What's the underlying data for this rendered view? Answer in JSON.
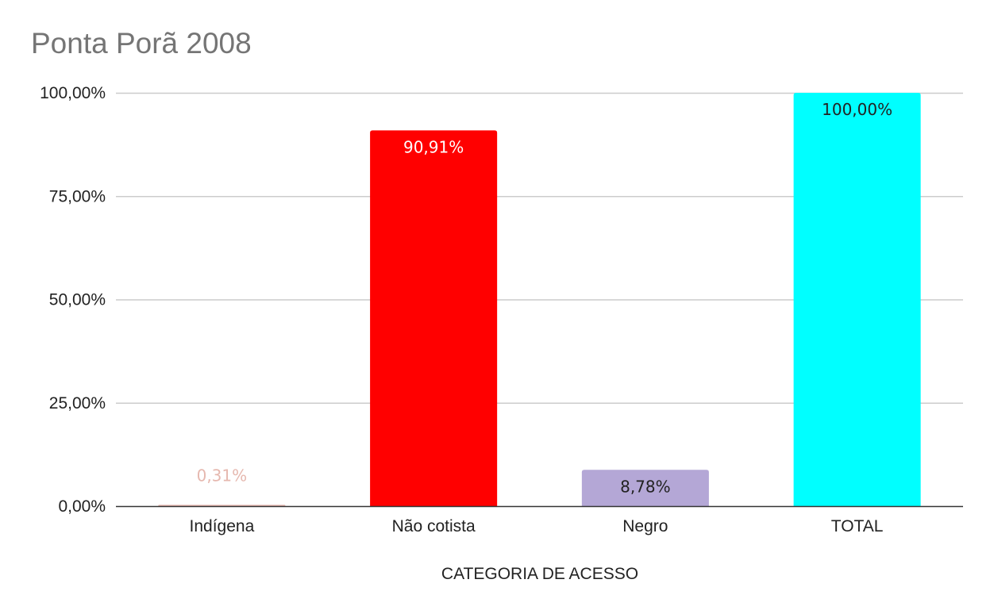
{
  "chart_data": {
    "type": "bar",
    "title": "Ponta Porã 2008",
    "xlabel": "CATEGORIA DE ACESSO",
    "ylabel": "",
    "categories": [
      "Indígena",
      "Não cotista",
      "Negro",
      "TOTAL"
    ],
    "values": [
      0.31,
      90.91,
      8.78,
      100.0
    ],
    "data_labels": [
      "0,31%",
      "90,91%",
      "8,78%",
      "100,00%"
    ],
    "bar_colors": [
      "#e6b8af",
      "#ff0000",
      "#b4a7d6",
      "#00ffff"
    ],
    "label_colors": [
      "#e6b8af",
      "#ffffff",
      "#222222",
      "#222222"
    ],
    "ylim": [
      0,
      100
    ],
    "yticks": [
      0,
      25,
      50,
      75,
      100
    ],
    "ytick_labels": [
      "0,00%",
      "25,00%",
      "50,00%",
      "75,00%",
      "100,00%"
    ],
    "grid": true,
    "legend": "none"
  }
}
